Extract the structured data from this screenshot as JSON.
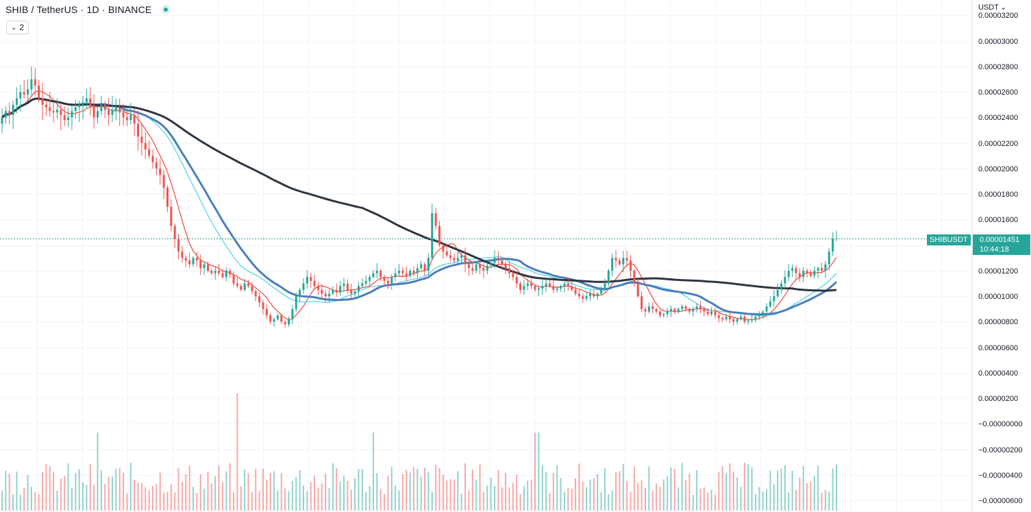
{
  "header": {
    "symbol_title": "SHIB / TetherUS · 1D · BINANCE",
    "collapse_count": "2"
  },
  "price_axis": {
    "currency": "USDT",
    "ticks": [
      {
        "label": "0.00003200",
        "value": 3.2e-05
      },
      {
        "label": "0.00003000",
        "value": 3e-05
      },
      {
        "label": "0.00002800",
        "value": 2.8e-05
      },
      {
        "label": "0.00002600",
        "value": 2.6e-05
      },
      {
        "label": "0.00002400",
        "value": 2.4e-05
      },
      {
        "label": "0.00002200",
        "value": 2.2e-05
      },
      {
        "label": "0.00002000",
        "value": 2e-05
      },
      {
        "label": "0.00001800",
        "value": 1.8e-05
      },
      {
        "label": "0.00001600",
        "value": 1.6e-05
      },
      {
        "label": "0.00001400",
        "value": 1.4e-05
      },
      {
        "label": "0.00001200",
        "value": 1.2e-05
      },
      {
        "label": "0.00001000",
        "value": 1e-05
      },
      {
        "label": "0.00000800",
        "value": 8e-06
      },
      {
        "label": "0.00000600",
        "value": 6e-06
      },
      {
        "label": "0.00000400",
        "value": 4e-06
      },
      {
        "label": "0.00000200",
        "value": 2e-06
      },
      {
        "label": "−0.00000000",
        "value": 0
      },
      {
        "label": "−0.00000200",
        "value": -2e-06
      },
      {
        "label": "−0.00000400",
        "value": -4e-06
      },
      {
        "label": "−0.00000600",
        "value": -6e-06
      }
    ]
  },
  "last_price": {
    "symbol": "SHIBUSDT",
    "price": "0.00001451",
    "countdown": "10:44:18"
  },
  "colors": {
    "up": "#26a69a",
    "down": "#ef5350",
    "ma_fast": "#f44336",
    "ma_cyan": "#4dd0e1",
    "ma_blue": "#4a7ebb",
    "ma_slow": "#2e3440",
    "grid": "#f0f3fa"
  },
  "chart_data": {
    "type": "candlestick",
    "title": "SHIB / TetherUS · 1D · BINANCE",
    "ylim": [
      -6.9e-06,
      3.32e-05
    ],
    "grid": true,
    "closes_e5": [
      2.4,
      2.45,
      2.42,
      2.5,
      2.55,
      2.6,
      2.58,
      2.62,
      2.7,
      2.65,
      2.55,
      2.5,
      2.48,
      2.45,
      2.44,
      2.46,
      2.42,
      2.38,
      2.4,
      2.45,
      2.48,
      2.5,
      2.52,
      2.55,
      2.48,
      2.4,
      2.45,
      2.5,
      2.46,
      2.42,
      2.45,
      2.48,
      2.44,
      2.4,
      2.38,
      2.42,
      2.35,
      2.25,
      2.2,
      2.15,
      2.1,
      2.05,
      2.0,
      1.95,
      1.85,
      1.7,
      1.55,
      1.45,
      1.35,
      1.3,
      1.28,
      1.25,
      1.3,
      1.28,
      1.22,
      1.25,
      1.2,
      1.18,
      1.2,
      1.18,
      1.15,
      1.2,
      1.17,
      1.1,
      1.08,
      1.05,
      1.1,
      1.08,
      1.04,
      1.0,
      0.95,
      0.9,
      0.85,
      0.8,
      0.82,
      0.85,
      0.8,
      0.78,
      0.82,
      0.9,
      1.0,
      1.05,
      1.1,
      1.15,
      1.12,
      1.08,
      1.05,
      1.02,
      1.0,
      1.02,
      1.05,
      1.03,
      1.08,
      1.1,
      1.05,
      1.02,
      1.04,
      1.08,
      1.1,
      1.12,
      1.15,
      1.18,
      1.2,
      1.15,
      1.12,
      1.1,
      1.15,
      1.18,
      1.2,
      1.18,
      1.16,
      1.2,
      1.18,
      1.22,
      1.25,
      1.2,
      1.3,
      1.65,
      1.55,
      1.4,
      1.35,
      1.32,
      1.3,
      1.28,
      1.3,
      1.32,
      1.25,
      1.22,
      1.2,
      1.25,
      1.22,
      1.2,
      1.24,
      1.26,
      1.3,
      1.28,
      1.25,
      1.22,
      1.18,
      1.15,
      1.1,
      1.05,
      1.08,
      1.1,
      1.08,
      1.05,
      1.06,
      1.08,
      1.1,
      1.08,
      1.05,
      1.06,
      1.08,
      1.1,
      1.08,
      1.05,
      1.02,
      1.0,
      0.98,
      1.0,
      1.02,
      1.0,
      1.02,
      1.05,
      1.1,
      1.2,
      1.3,
      1.28,
      1.25,
      1.3,
      1.28,
      1.2,
      1.1,
      1.0,
      0.9,
      0.88,
      0.92,
      0.9,
      0.88,
      0.85,
      0.86,
      0.88,
      0.9,
      0.88,
      0.9,
      0.92,
      0.9,
      0.88,
      0.9,
      0.92,
      0.9,
      0.88,
      0.86,
      0.88,
      0.85,
      0.83,
      0.82,
      0.84,
      0.82,
      0.8,
      0.82,
      0.84,
      0.8,
      0.81,
      0.82,
      0.84,
      0.86,
      0.88,
      0.92,
      0.96,
      1.0,
      1.05,
      1.1,
      1.15,
      1.2,
      1.22,
      1.18,
      1.15,
      1.2,
      1.18,
      1.16,
      1.2,
      1.22,
      1.2,
      1.25,
      1.35,
      1.45,
      1.451
    ],
    "series": [
      {
        "name": "SHIBUSDT",
        "kind": "candles"
      },
      {
        "kind": "ma",
        "period": 7,
        "color": "#f44336"
      },
      {
        "kind": "ma",
        "period": 20,
        "color": "#4dd0e1"
      },
      {
        "kind": "ma",
        "period": 25,
        "color": "#4a7ebb"
      },
      {
        "kind": "ma",
        "period": 99,
        "color": "#2e3440"
      }
    ],
    "volume": {
      "shown": true,
      "relative_peaks": [
        0.3,
        0.6,
        0.9,
        0.6,
        1.0,
        0.6,
        0.5,
        0.6,
        0.7
      ]
    }
  }
}
